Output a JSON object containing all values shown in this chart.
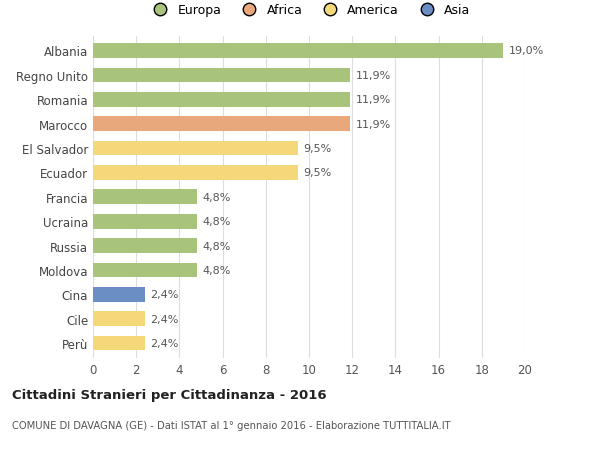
{
  "categories": [
    "Albania",
    "Regno Unito",
    "Romania",
    "Marocco",
    "El Salvador",
    "Ecuador",
    "Francia",
    "Ucraina",
    "Russia",
    "Moldova",
    "Cina",
    "Cile",
    "Perù"
  ],
  "values": [
    19.0,
    11.9,
    11.9,
    11.9,
    9.5,
    9.5,
    4.8,
    4.8,
    4.8,
    4.8,
    2.4,
    2.4,
    2.4
  ],
  "labels": [
    "19,0%",
    "11,9%",
    "11,9%",
    "11,9%",
    "9,5%",
    "9,5%",
    "4,8%",
    "4,8%",
    "4,8%",
    "4,8%",
    "2,4%",
    "2,4%",
    "2,4%"
  ],
  "colors": [
    "#a8c47a",
    "#a8c47a",
    "#a8c47a",
    "#e8a87c",
    "#f5d87a",
    "#f5d87a",
    "#a8c47a",
    "#a8c47a",
    "#a8c47a",
    "#a8c47a",
    "#6b8ec4",
    "#f5d87a",
    "#f5d87a"
  ],
  "legend_labels": [
    "Europa",
    "Africa",
    "America",
    "Asia"
  ],
  "legend_colors": [
    "#a8c47a",
    "#e8a87c",
    "#f5d87a",
    "#6b8ec4"
  ],
  "title": "Cittadini Stranieri per Cittadinanza - 2016",
  "subtitle": "COMUNE DI DAVAGNA (GE) - Dati ISTAT al 1° gennaio 2016 - Elaborazione TUTTITALIA.IT",
  "xlim": [
    0,
    20
  ],
  "xticks": [
    0,
    2,
    4,
    6,
    8,
    10,
    12,
    14,
    16,
    18,
    20
  ],
  "background_color": "#ffffff",
  "grid_color": "#dddddd"
}
